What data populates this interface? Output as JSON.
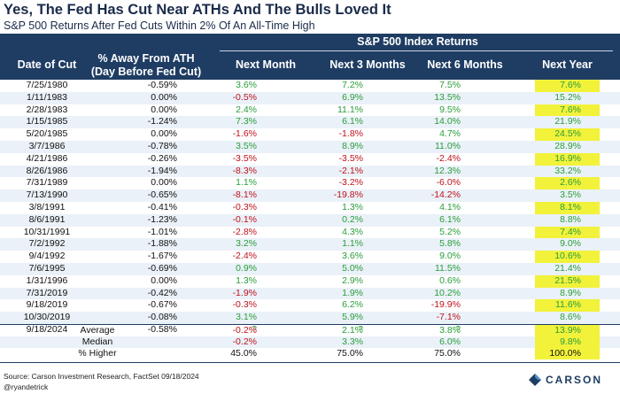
{
  "title": "Yes, The Fed Has Cut Near ATHs And The Bulls Loved It",
  "subtitle": "S&P 500 Returns After Fed Cuts Within 2% Of An All-Time High",
  "group_header": "S&P 500 Index Returns",
  "headers": {
    "date": [
      "Date of Cut"
    ],
    "ath": [
      "% Away From ATH",
      "(Day Before Fed Cut)"
    ],
    "m1": [
      "Next Month"
    ],
    "m3": [
      "Next 3 Months"
    ],
    "m6": [
      "Next 6 Months"
    ],
    "yr": [
      "Next Year"
    ]
  },
  "rows": [
    {
      "date": "7/25/1980",
      "ath": "-0.59%",
      "m1": "3.6%",
      "m3": "7.2%",
      "m6": "7.5%",
      "yr": "7.6%"
    },
    {
      "date": "1/11/1983",
      "ath": "0.00%",
      "m1": "-0.5%",
      "m3": "6.9%",
      "m6": "13.5%",
      "yr": "15.2%"
    },
    {
      "date": "2/28/1983",
      "ath": "0.00%",
      "m1": "2.4%",
      "m3": "11.1%",
      "m6": "9.5%",
      "yr": "7.6%"
    },
    {
      "date": "1/15/1985",
      "ath": "-1.24%",
      "m1": "7.3%",
      "m3": "6.1%",
      "m6": "14.0%",
      "yr": "21.9%"
    },
    {
      "date": "5/20/1985",
      "ath": "0.00%",
      "m1": "-1.6%",
      "m3": "-1.8%",
      "m6": "4.7%",
      "yr": "24.5%"
    },
    {
      "date": "3/7/1986",
      "ath": "-0.78%",
      "m1": "3.5%",
      "m3": "8.9%",
      "m6": "11.0%",
      "yr": "28.9%"
    },
    {
      "date": "4/21/1986",
      "ath": "-0.26%",
      "m1": "-3.5%",
      "m3": "-3.5%",
      "m6": "-2.4%",
      "yr": "16.9%"
    },
    {
      "date": "8/26/1986",
      "ath": "-1.94%",
      "m1": "-8.3%",
      "m3": "-2.1%",
      "m6": "12.3%",
      "yr": "33.2%"
    },
    {
      "date": "7/31/1989",
      "ath": "0.00%",
      "m1": "1.1%",
      "m3": "-3.2%",
      "m6": "-6.0%",
      "yr": "2.6%"
    },
    {
      "date": "7/13/1990",
      "ath": "-0.65%",
      "m1": "-8.1%",
      "m3": "-19.8%",
      "m6": "-14.2%",
      "yr": "3.5%"
    },
    {
      "date": "3/8/1991",
      "ath": "-0.41%",
      "m1": "-0.3%",
      "m3": "1.3%",
      "m6": "4.1%",
      "yr": "8.1%"
    },
    {
      "date": "8/6/1991",
      "ath": "-1.23%",
      "m1": "-0.1%",
      "m3": "0.2%",
      "m6": "6.1%",
      "yr": "8.8%"
    },
    {
      "date": "10/31/1991",
      "ath": "-1.01%",
      "m1": "-2.8%",
      "m3": "4.3%",
      "m6": "5.2%",
      "yr": "7.4%"
    },
    {
      "date": "7/2/1992",
      "ath": "-1.88%",
      "m1": "3.2%",
      "m3": "1.1%",
      "m6": "5.8%",
      "yr": "9.0%"
    },
    {
      "date": "9/4/1992",
      "ath": "-1.67%",
      "m1": "-2.4%",
      "m3": "3.6%",
      "m6": "9.0%",
      "yr": "10.6%"
    },
    {
      "date": "7/6/1995",
      "ath": "-0.69%",
      "m1": "0.9%",
      "m3": "5.0%",
      "m6": "11.5%",
      "yr": "21.4%"
    },
    {
      "date": "1/31/1996",
      "ath": "0.00%",
      "m1": "1.3%",
      "m3": "2.9%",
      "m6": "0.6%",
      "yr": "21.5%"
    },
    {
      "date": "7/31/2019",
      "ath": "-0.42%",
      "m1": "-1.9%",
      "m3": "1.9%",
      "m6": "10.2%",
      "yr": "8.9%"
    },
    {
      "date": "9/18/2019",
      "ath": "-0.67%",
      "m1": "-0.3%",
      "m3": "6.2%",
      "m6": "-19.9%",
      "yr": "11.6%"
    },
    {
      "date": "10/30/2019",
      "ath": "-0.08%",
      "m1": "3.1%",
      "m3": "5.9%",
      "m6": "-7.1%",
      "yr": "8.6%"
    },
    {
      "date": "9/18/2024",
      "ath": "-0.58%",
      "m1": "?",
      "m3": "?",
      "m6": "?",
      "yr": "?"
    }
  ],
  "summary": [
    {
      "label": "Average",
      "m1": "-0.2%",
      "m3": "2.1%",
      "m6": "3.8%",
      "yr": "13.9%"
    },
    {
      "label": "Median",
      "m1": "-0.2%",
      "m3": "3.3%",
      "m6": "6.0%",
      "yr": "9.8%"
    },
    {
      "label": "% Higher",
      "m1": "45.0%",
      "m3": "75.0%",
      "m6": "75.0%",
      "yr": "100.0%"
    }
  ],
  "source": "Source: Carson Investment Research, FactSet 09/18/2024",
  "handle": "@ryandetrick",
  "logo_text": "CARSON",
  "colors": {
    "header_bg": "#1f3d63",
    "positive": "#2a9d3a",
    "negative": "#c0121c",
    "highlight": "#f2f23a",
    "alt_row": "#eaf1f8"
  }
}
